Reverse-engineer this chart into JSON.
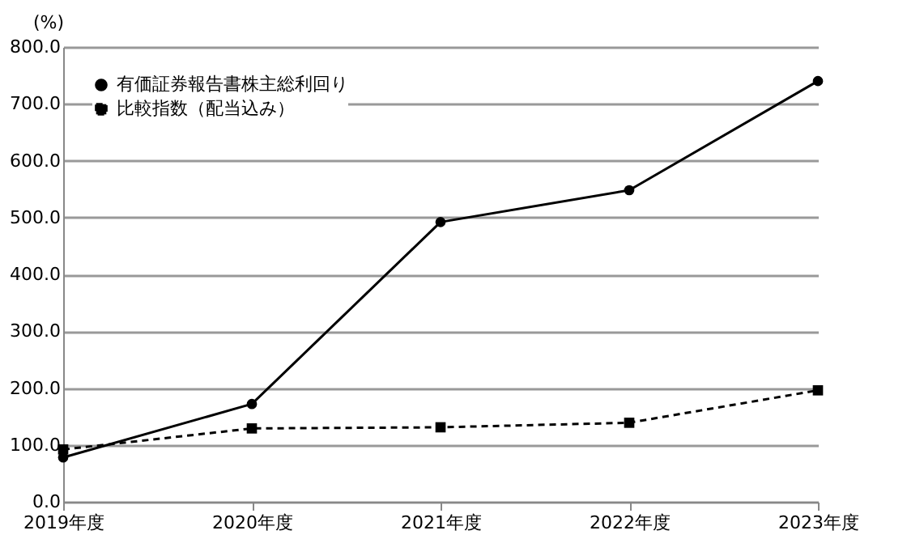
{
  "chart_data": {
    "type": "line",
    "ylabel": "(%)",
    "categories": [
      "2019年度",
      "2020年度",
      "2021年度",
      "2022年度",
      "2023年度"
    ],
    "series": [
      {
        "name": "有価証券報告書株主総利回り",
        "color": "#000000",
        "marker": "circle",
        "line_style": "solid",
        "values": [
          78,
          172,
          492,
          548,
          740
        ]
      },
      {
        "name": "比較指数（配当込み）",
        "color": "#000000",
        "marker": "square",
        "line_style": "dashed",
        "values": [
          92,
          129,
          131,
          139,
          196
        ]
      }
    ],
    "ylim": [
      0,
      800
    ],
    "yticks": [
      {
        "value": 0,
        "label": "0.0"
      },
      {
        "value": 100,
        "label": "100.0"
      },
      {
        "value": 200,
        "label": "200.0"
      },
      {
        "value": 300,
        "label": "300.0"
      },
      {
        "value": 400,
        "label": "400.0"
      },
      {
        "value": 500,
        "label": "500.0"
      },
      {
        "value": 600,
        "label": "600.0"
      },
      {
        "value": 700,
        "label": "700.0"
      },
      {
        "value": 800,
        "label": "800.0"
      }
    ],
    "grid": "y",
    "legend": "top left"
  }
}
